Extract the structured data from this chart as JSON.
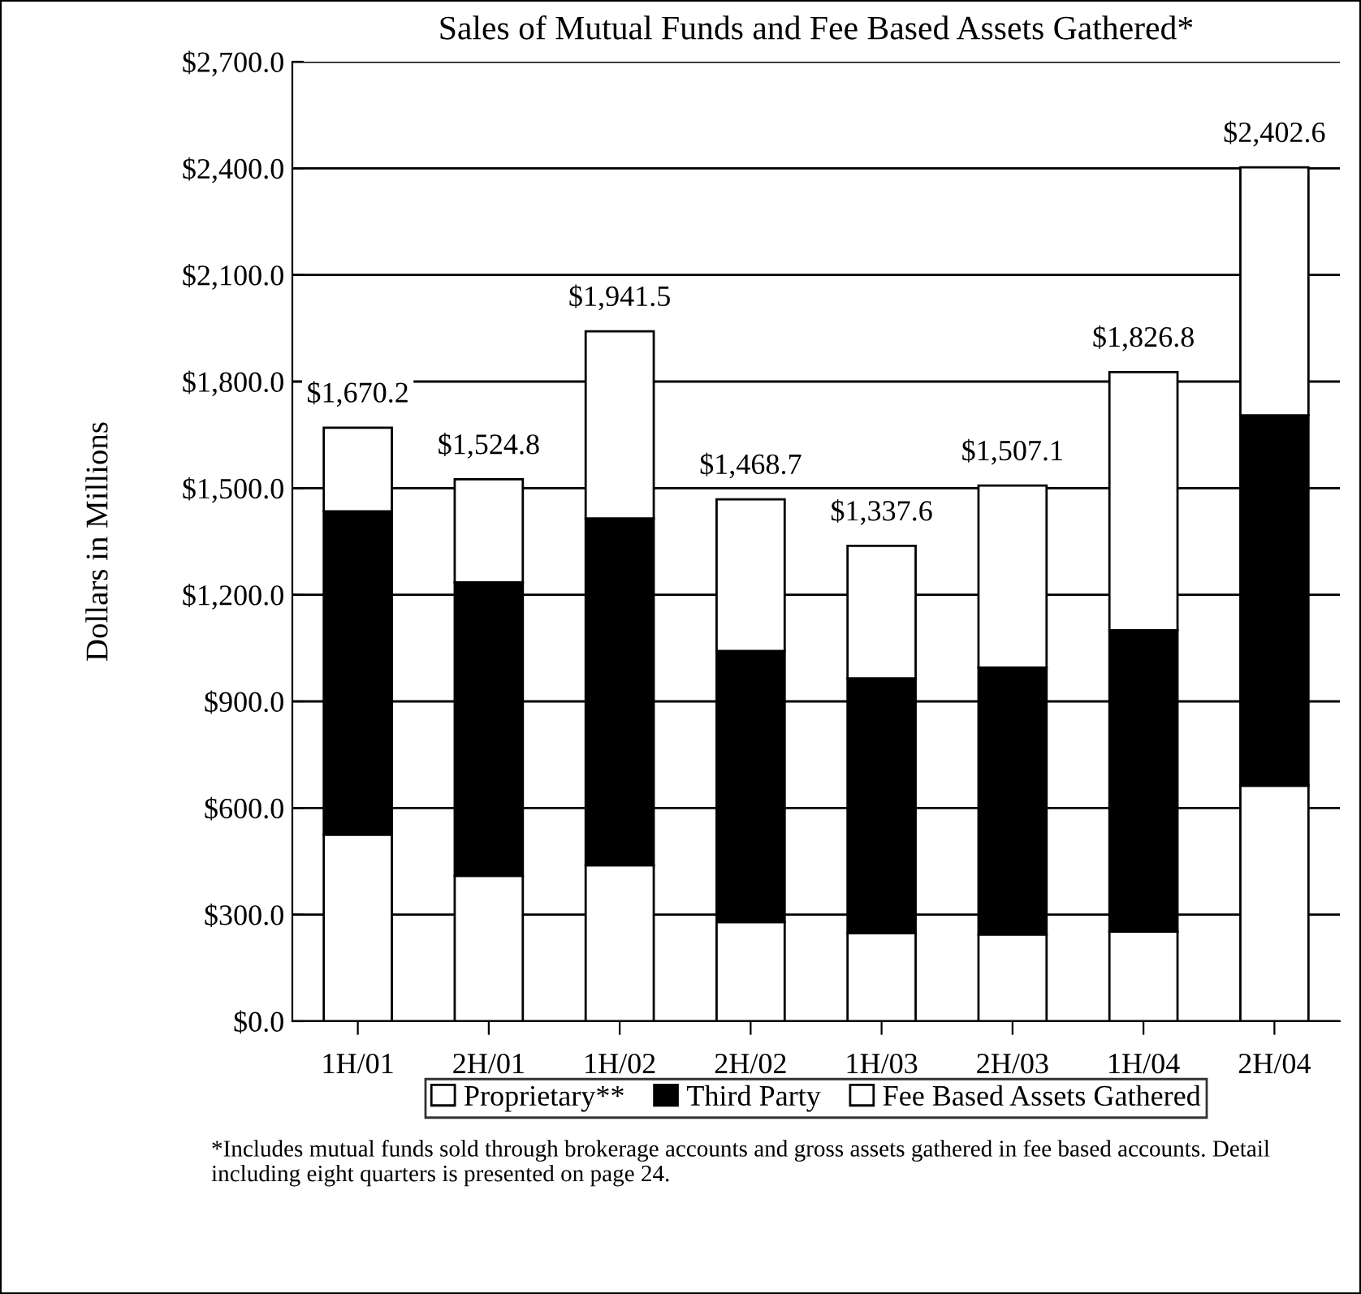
{
  "chart_data": {
    "type": "bar",
    "title": "Sales of Mutual Funds and Fee Based Assets Gathered*",
    "ylabel": "Dollars in Millions",
    "categories": [
      "1H/01",
      "2H/01",
      "1H/02",
      "2H/02",
      "1H/03",
      "2H/03",
      "1H/04",
      "2H/04"
    ],
    "stacked": true,
    "series": [
      {
        "name": "Proprietary**",
        "color": "#ffffff",
        "values": [
          525,
          409,
          439,
          279,
          248,
          244,
          252,
          663
        ]
      },
      {
        "name": "Third Party",
        "color": "#000000",
        "values": [
          910,
          826,
          976,
          763,
          717,
          751,
          848,
          1042
        ]
      },
      {
        "name": "Fee Based Assets Gathered",
        "color": "#ffffff",
        "values": [
          235.2,
          289.8,
          526.5,
          426.7,
          372.6,
          512.1,
          726.8,
          697.6
        ]
      }
    ],
    "totals": [
      "$1,670.2",
      "$1,524.8",
      "$1,941.5",
      "$1,468.7",
      "$1,337.6",
      "$1,507.1",
      "$1,826.8",
      "$2,402.6"
    ],
    "ylim": [
      0,
      2700
    ],
    "yticks": [
      {
        "value": 0,
        "label": "$0.0"
      },
      {
        "value": 300,
        "label": "$300.0"
      },
      {
        "value": 600,
        "label": "$600.0"
      },
      {
        "value": 900,
        "label": "$900.0"
      },
      {
        "value": 1200,
        "label": "$1,200.0"
      },
      {
        "value": 1500,
        "label": "$1,500.0"
      },
      {
        "value": 1800,
        "label": "$1,800.0"
      },
      {
        "value": 2100,
        "label": "$2,100.0"
      },
      {
        "value": 2400,
        "label": "$2,400.0"
      },
      {
        "value": 2700,
        "label": "$2,700.0"
      }
    ],
    "grid": "y",
    "legend": "bottom",
    "annotations": [
      "*Includes mutual funds sold through brokerage accounts and gross assets gathered in fee based accounts. Detail including eight quarters is presented on page 24."
    ]
  }
}
